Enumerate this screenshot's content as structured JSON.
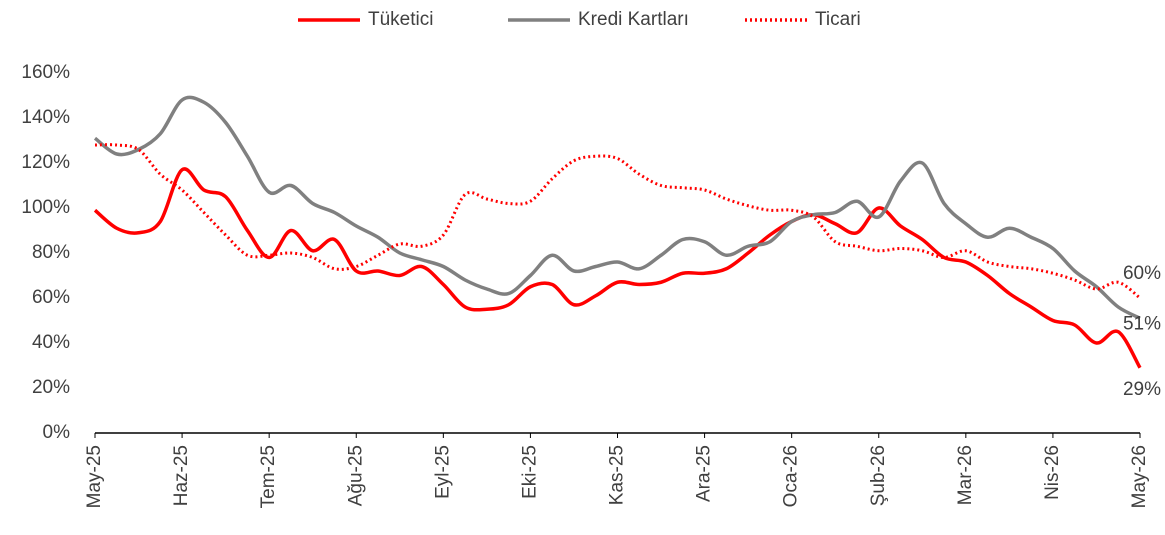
{
  "chart_data": {
    "type": "line",
    "categories": [
      "May-25",
      null,
      null,
      null,
      "Haz-25",
      null,
      null,
      null,
      "Tem-25",
      null,
      null,
      null,
      "Ağu-25",
      null,
      null,
      null,
      "Eyl-25",
      null,
      null,
      null,
      "Eki-25",
      null,
      null,
      null,
      "Kas-25",
      null,
      null,
      null,
      "Ara-25",
      null,
      null,
      null,
      "Oca-26",
      null,
      null,
      null,
      "Şub-26",
      null,
      null,
      null,
      "Mar-26",
      null,
      null,
      null,
      "Nis-26",
      null,
      null,
      null,
      "May-26"
    ],
    "series": [
      {
        "name": "Tüketici",
        "color": "#ff0000",
        "style": "solid",
        "values": [
          99,
          91,
          89,
          94,
          117,
          108,
          105,
          90,
          78,
          90,
          81,
          86,
          72,
          72,
          70,
          74,
          66,
          56,
          55,
          57,
          65,
          66,
          57,
          61,
          67,
          66,
          67,
          71,
          71,
          73,
          80,
          88,
          94,
          97,
          93,
          89,
          100,
          92,
          86,
          78,
          76,
          70,
          62,
          56,
          50,
          48,
          40,
          45,
          29
        ],
        "value_labels": [
          null,
          null,
          null,
          null,
          null,
          null,
          null,
          null,
          null,
          null,
          null,
          null,
          null,
          null,
          null,
          null,
          null,
          null,
          null,
          null,
          null,
          null,
          null,
          null,
          null,
          null,
          null,
          null,
          null,
          null,
          null,
          null,
          null,
          null,
          null,
          null,
          null,
          null,
          null,
          null,
          null,
          null,
          null,
          null,
          null,
          null,
          null,
          null,
          "29%"
        ]
      },
      {
        "name": "Kredi Kartları",
        "color": "#808080",
        "style": "solid",
        "values": [
          131,
          124,
          126,
          133,
          148,
          147,
          138,
          123,
          107,
          110,
          102,
          98,
          92,
          87,
          80,
          77,
          74,
          68,
          64,
          62,
          70,
          79,
          72,
          74,
          76,
          73,
          79,
          86,
          85,
          79,
          83,
          85,
          94,
          97,
          98,
          103,
          96,
          112,
          120,
          102,
          93,
          87,
          91,
          87,
          82,
          72,
          65,
          56,
          51
        ],
        "value_labels": [
          null,
          null,
          null,
          null,
          null,
          null,
          null,
          null,
          null,
          null,
          null,
          null,
          null,
          null,
          null,
          null,
          null,
          null,
          null,
          null,
          null,
          null,
          null,
          null,
          null,
          null,
          null,
          null,
          null,
          null,
          null,
          null,
          null,
          null,
          null,
          null,
          null,
          null,
          null,
          null,
          null,
          null,
          null,
          null,
          null,
          null,
          null,
          null,
          "51%"
        ]
      },
      {
        "name": "Ticari",
        "color": "#ff0000",
        "style": "dotted",
        "values": [
          128,
          128,
          126,
          115,
          108,
          98,
          88,
          79,
          79,
          80,
          78,
          73,
          74,
          79,
          84,
          83,
          88,
          106,
          104,
          102,
          103,
          113,
          121,
          123,
          122,
          115,
          110,
          109,
          108,
          104,
          101,
          99,
          99,
          96,
          85,
          83,
          81,
          82,
          81,
          78,
          81,
          76,
          74,
          73,
          71,
          68,
          64,
          67,
          60
        ],
        "value_labels": [
          null,
          null,
          null,
          null,
          null,
          null,
          null,
          null,
          null,
          null,
          null,
          null,
          null,
          null,
          null,
          null,
          null,
          null,
          null,
          null,
          null,
          null,
          null,
          null,
          null,
          null,
          null,
          null,
          null,
          null,
          null,
          null,
          null,
          null,
          null,
          null,
          null,
          null,
          null,
          null,
          null,
          null,
          null,
          null,
          null,
          null,
          null,
          null,
          "60%"
        ]
      }
    ],
    "ylim": [
      0,
      160
    ],
    "yticks": [
      {
        "value": 0,
        "label": "0%"
      },
      {
        "value": 20,
        "label": "20%"
      },
      {
        "value": 40,
        "label": "40%"
      },
      {
        "value": 60,
        "label": "60%"
      },
      {
        "value": 80,
        "label": "80%"
      },
      {
        "value": 100,
        "label": "100%"
      },
      {
        "value": 120,
        "label": "120%"
      },
      {
        "value": 140,
        "label": "140%"
      },
      {
        "value": 160,
        "label": "160%"
      }
    ],
    "grid": false,
    "legend": "top"
  }
}
